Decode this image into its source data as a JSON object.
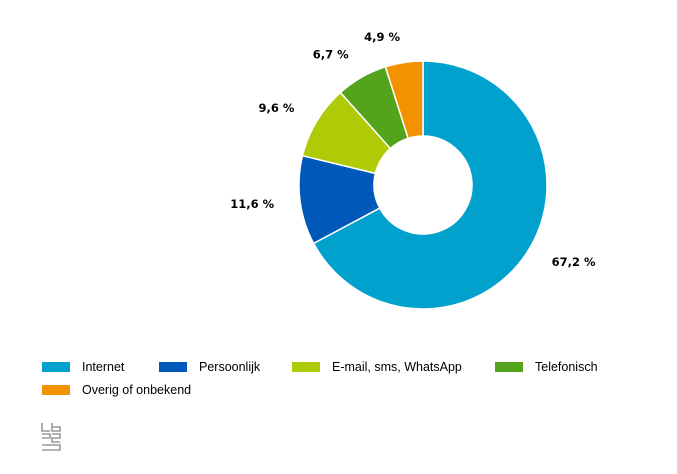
{
  "chart_data": {
    "type": "pie",
    "donut": true,
    "categories": [
      "Internet",
      "Persoonlijk",
      "E-mail, sms, WhatsApp",
      "Telefonisch",
      "Overig of onbekend"
    ],
    "values": [
      67.2,
      11.6,
      9.6,
      6.7,
      4.9
    ],
    "value_labels": [
      "67,2 %",
      "11,6 %",
      "9,6 %",
      "6,7 %",
      "4,9 %"
    ],
    "colors": [
      "#00a1cd",
      "#0058b8",
      "#afcb05",
      "#53a31d",
      "#f39200"
    ],
    "legend_position": "bottom-left"
  },
  "legend": {
    "items": [
      {
        "label": "Internet",
        "color": "#00a1cd"
      },
      {
        "label": "Persoonlijk",
        "color": "#0058b8"
      },
      {
        "label": "E-mail, sms, WhatsApp",
        "color": "#afcb05"
      },
      {
        "label": "Telefonisch",
        "color": "#53a31d"
      },
      {
        "label": "Overig of onbekend",
        "color": "#f39200"
      }
    ]
  },
  "logo": {
    "icon": "cbs-logo-icon"
  }
}
